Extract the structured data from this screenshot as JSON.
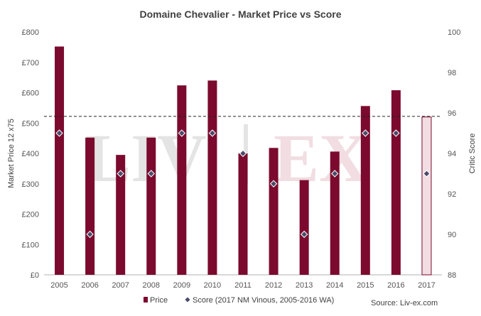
{
  "chart_data": {
    "type": "bar",
    "title": "Domaine Chevalier - Market Price vs Score",
    "categories": [
      "2005",
      "2006",
      "2007",
      "2008",
      "2009",
      "2010",
      "2011",
      "2012",
      "2013",
      "2014",
      "2015",
      "2016",
      "2017"
    ],
    "series": [
      {
        "name": "Price",
        "axis": "left",
        "type": "bar",
        "color": "#7b0a2e",
        "values": [
          752,
          452,
          395,
          452,
          624,
          640,
          400,
          418,
          312,
          406,
          556,
          608,
          520
        ]
      },
      {
        "name": "Score (2017 NM Vinous, 2005-2016 WA)",
        "axis": "right",
        "type": "scatter",
        "color": "#4a4a6a",
        "values": [
          95,
          90,
          93,
          93,
          95,
          95,
          94,
          92.5,
          90,
          93,
          95,
          95,
          93
        ]
      }
    ],
    "highlight": {
      "category": "2017",
      "fill": "#f1dde2",
      "stroke": "#7b0a2e"
    },
    "reference_line": {
      "axis": "left",
      "value": 522,
      "style": "dashed"
    },
    "ylabel": "Market Price 12 x75",
    "y2label": "Critic Score",
    "ylim": [
      0,
      800
    ],
    "y2lim": [
      88,
      100
    ],
    "yticks": [
      "£0",
      "£100",
      "£200",
      "£300",
      "£400",
      "£500",
      "£600",
      "£700",
      "£800"
    ],
    "y2ticks": [
      "88",
      "90",
      "92",
      "94",
      "96",
      "98",
      "100"
    ],
    "watermark": "LIV|EX",
    "source": "Source: Liv-ex.com",
    "legend_position": "bottom",
    "grid": false
  }
}
